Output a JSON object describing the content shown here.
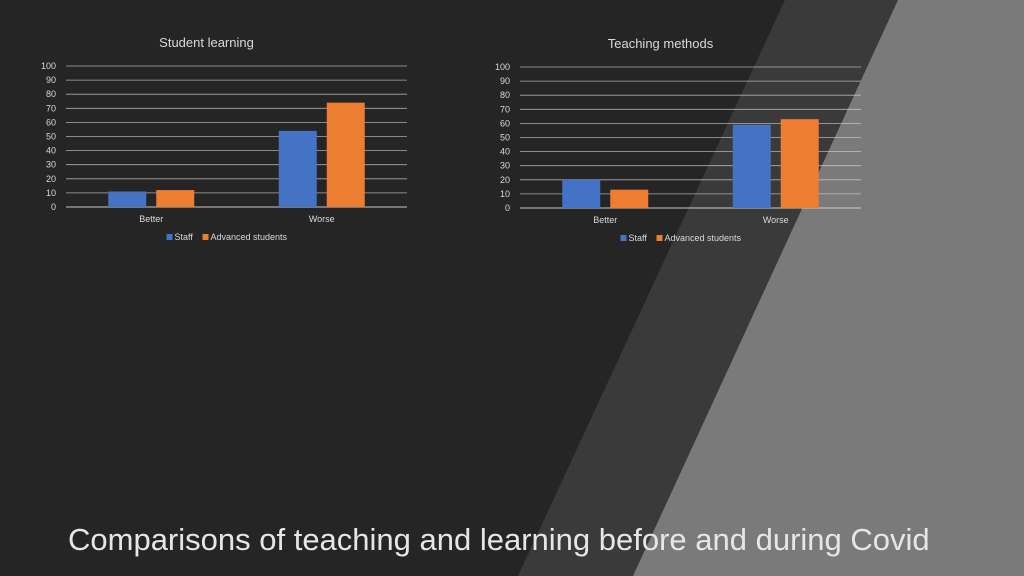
{
  "slide": {
    "title": "Comparisons of teaching and learning before and during Covid"
  },
  "colors": {
    "background": "#252525",
    "band_dark": "#3a3a3a",
    "band_light": "#7a7a7a",
    "staff": "#4472c4",
    "advanced_students": "#ed7d31",
    "gridline": "#d9d9d9",
    "text": "#d9d9d9"
  },
  "chart_data": [
    {
      "type": "bar",
      "title": "Student learning",
      "categories": [
        "Better",
        "Worse"
      ],
      "series": [
        {
          "name": "Staff",
          "values": [
            11,
            54
          ]
        },
        {
          "name": "Advanced students",
          "values": [
            12,
            74
          ]
        }
      ],
      "ylim": [
        0,
        100
      ],
      "yticks": [
        0,
        10,
        20,
        30,
        40,
        50,
        60,
        70,
        80,
        90,
        100
      ],
      "grid": true,
      "legend": "bottom"
    },
    {
      "type": "bar",
      "title": "Teaching methods",
      "categories": [
        "Better",
        "Worse"
      ],
      "series": [
        {
          "name": "Staff",
          "values": [
            20,
            59
          ]
        },
        {
          "name": "Advanced students",
          "values": [
            13,
            63
          ]
        }
      ],
      "ylim": [
        0,
        100
      ],
      "yticks": [
        0,
        10,
        20,
        30,
        40,
        50,
        60,
        70,
        80,
        90,
        100
      ],
      "grid": true,
      "legend": "bottom"
    }
  ]
}
